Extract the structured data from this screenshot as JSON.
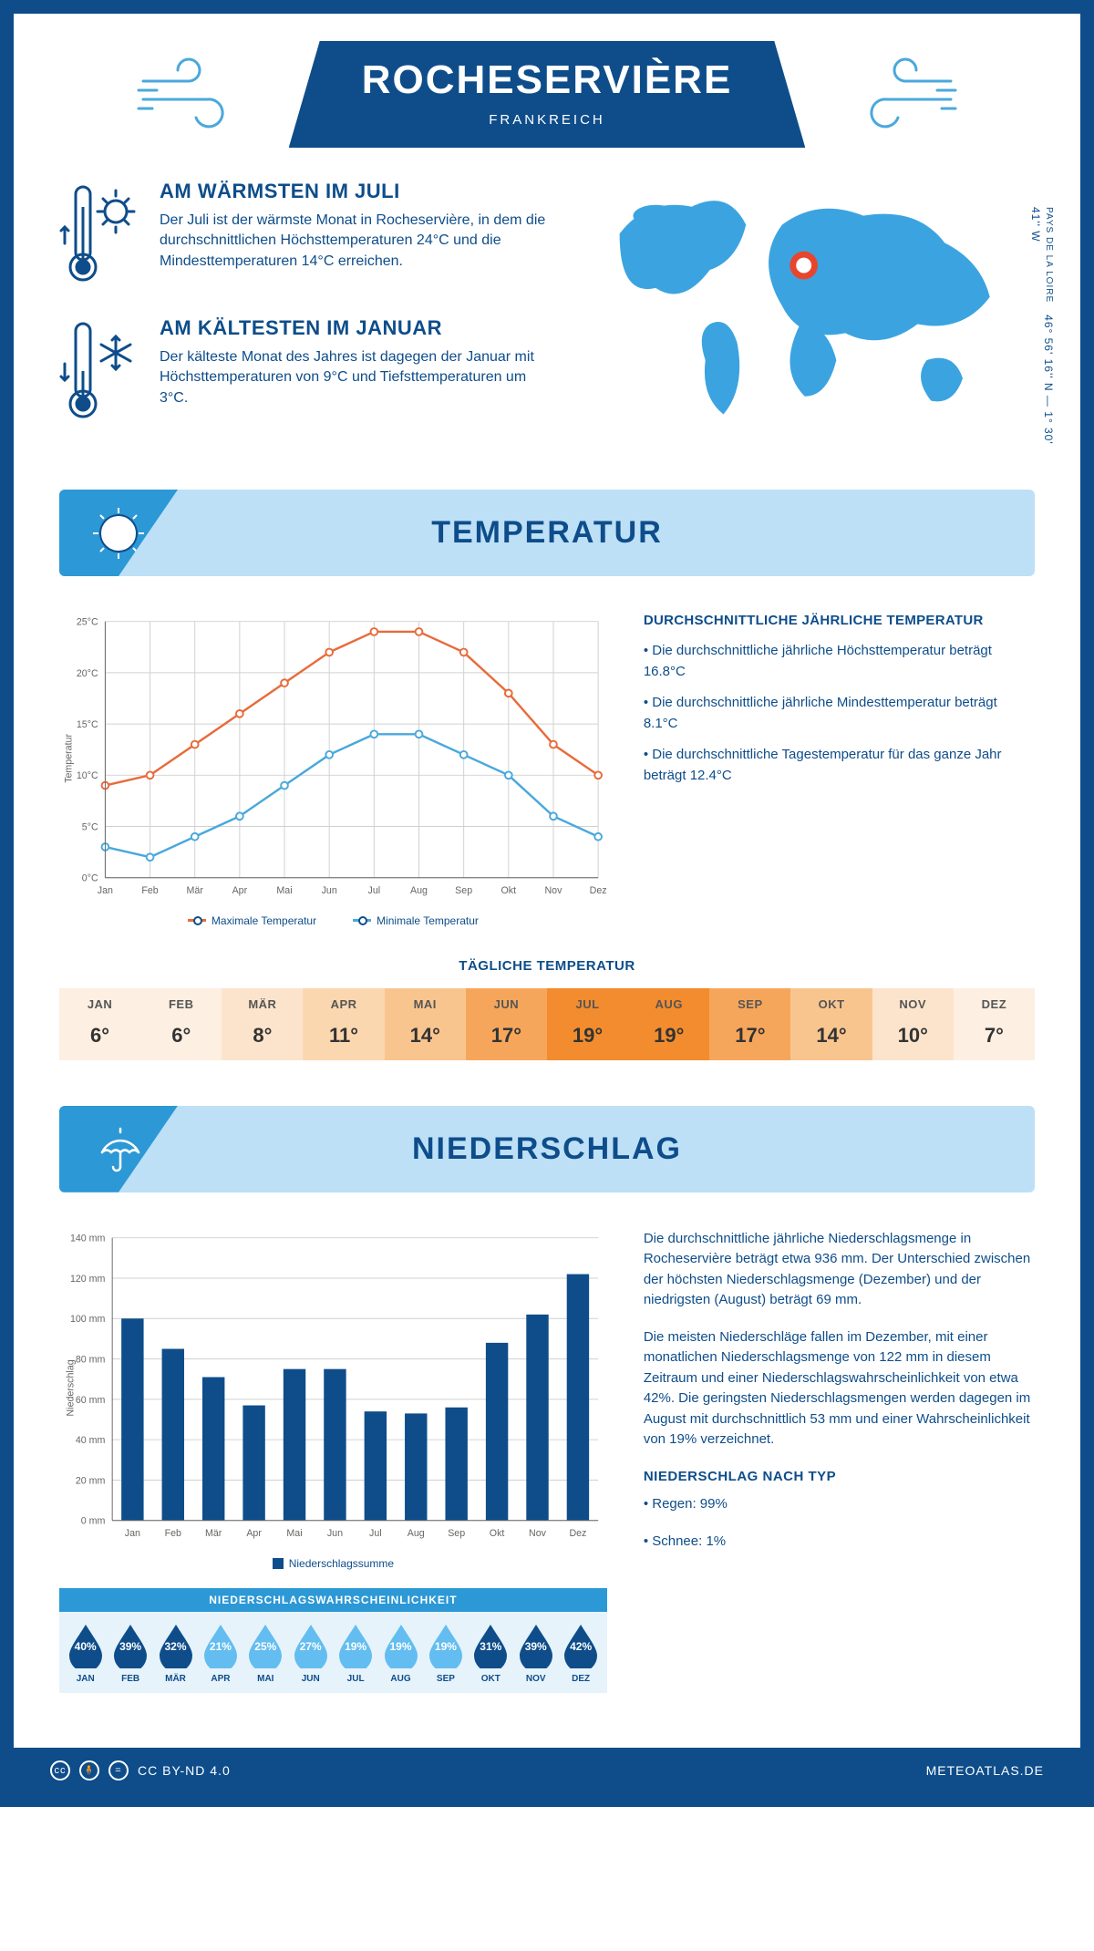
{
  "header": {
    "city": "ROCHESERVIÈRE",
    "country": "FRANKREICH"
  },
  "coords": {
    "lat": "46° 56' 16'' N — 1° 30' 41'' W",
    "region": "PAYS DE LA LOIRE"
  },
  "warmest": {
    "title": "AM WÄRMSTEN IM JULI",
    "text": "Der Juli ist der wärmste Monat in Rocheservière, in dem die durchschnittlichen Höchsttemperaturen 24°C und die Mindesttemperaturen 14°C erreichen."
  },
  "coldest": {
    "title": "AM KÄLTESTEN IM JANUAR",
    "text": "Der kälteste Monat des Jahres ist dagegen der Januar mit Höchsttemperaturen von 9°C und Tiefsttemperaturen um 3°C."
  },
  "section_temp": "TEMPERATUR",
  "section_precip": "NIEDERSCHLAG",
  "months": [
    "Jan",
    "Feb",
    "Mär",
    "Apr",
    "Mai",
    "Jun",
    "Jul",
    "Aug",
    "Sep",
    "Okt",
    "Nov",
    "Dez"
  ],
  "months_upper": [
    "JAN",
    "FEB",
    "MÄR",
    "APR",
    "MAI",
    "JUN",
    "JUL",
    "AUG",
    "SEP",
    "OKT",
    "NOV",
    "DEZ"
  ],
  "temp_chart": {
    "type": "line",
    "ylabel": "Temperatur",
    "ylim": [
      0,
      25
    ],
    "ytick_step": 5,
    "ytick_suffix": "°C",
    "max_series": {
      "label": "Maximale Temperatur",
      "color": "#e86b3a",
      "values": [
        9,
        10,
        13,
        16,
        19,
        22,
        24,
        24,
        22,
        18,
        13,
        10
      ]
    },
    "min_series": {
      "label": "Minimale Temperatur",
      "color": "#4aa8dd",
      "values": [
        3,
        2,
        4,
        6,
        9,
        12,
        14,
        14,
        12,
        10,
        6,
        4
      ]
    },
    "grid_color": "#d0d0d0",
    "axis_color": "#888"
  },
  "temp_facts": {
    "title": "DURCHSCHNITTLICHE JÄHRLICHE TEMPERATUR",
    "b1": "• Die durchschnittliche jährliche Höchsttemperatur beträgt 16.8°C",
    "b2": "• Die durchschnittliche jährliche Mindesttemperatur beträgt 8.1°C",
    "b3": "• Die durchschnittliche Tagestemperatur für das ganze Jahr beträgt 12.4°C"
  },
  "daily_temp": {
    "title": "TÄGLICHE TEMPERATUR",
    "values": [
      "6°",
      "6°",
      "8°",
      "11°",
      "14°",
      "17°",
      "19°",
      "19°",
      "17°",
      "14°",
      "10°",
      "7°"
    ],
    "colors": [
      "#fdefe1",
      "#fdefe1",
      "#fce4cc",
      "#fbd7b0",
      "#f9c58f",
      "#f6a65b",
      "#f28c2e",
      "#f28c2e",
      "#f6a65b",
      "#f9c58f",
      "#fce4cc",
      "#fdefe1"
    ]
  },
  "precip_chart": {
    "type": "bar",
    "ylabel": "Niederschlag",
    "ylim": [
      0,
      140
    ],
    "ytick_step": 20,
    "ytick_suffix": " mm",
    "values": [
      100,
      85,
      71,
      57,
      75,
      75,
      54,
      53,
      56,
      88,
      102,
      122
    ],
    "bar_color": "#0e4d8a",
    "legend": "Niederschlagssumme",
    "grid_color": "#d0d0d0"
  },
  "precip_text": {
    "p1": "Die durchschnittliche jährliche Niederschlagsmenge in Rocheservière beträgt etwa 936 mm. Der Unterschied zwischen der höchsten Niederschlagsmenge (Dezember) und der niedrigsten (August) beträgt 69 mm.",
    "p2": "Die meisten Niederschläge fallen im Dezember, mit einer monatlichen Niederschlagsmenge von 122 mm in diesem Zeitraum und einer Niederschlagswahrscheinlichkeit von etwa 42%. Die geringsten Niederschlagsmengen werden dagegen im August mit durchschnittlich 53 mm und einer Wahrscheinlichkeit von 19% verzeichnet.",
    "type_title": "NIEDERSCHLAG NACH TYP",
    "type1": "• Regen: 99%",
    "type2": "• Schnee: 1%"
  },
  "prob": {
    "title": "NIEDERSCHLAGSWAHRSCHEINLICHKEIT",
    "values": [
      40,
      39,
      32,
      21,
      25,
      27,
      19,
      19,
      19,
      31,
      39,
      42
    ],
    "color_hi": "#0e4d8a",
    "color_lo": "#63bdf0"
  },
  "footer": {
    "license": "CC BY-ND 4.0",
    "site": "METEOATLAS.DE"
  },
  "colors": {
    "brand": "#0e4d8a",
    "accent": "#2c98d6",
    "light": "#bde0f7"
  }
}
